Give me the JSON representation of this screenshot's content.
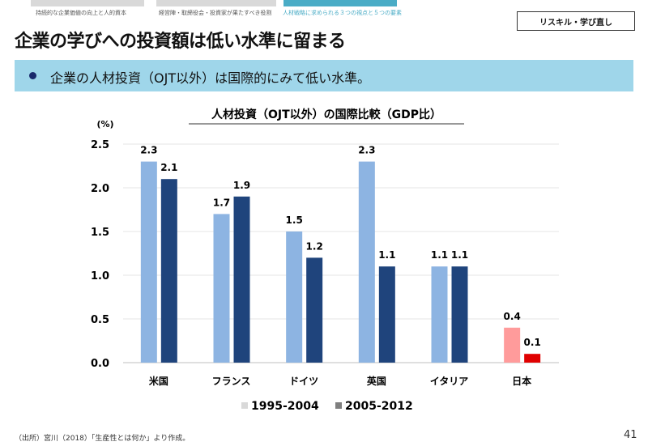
{
  "header": {
    "tabs": [
      {
        "label": "持続的な企業価値の向上と人的資本",
        "color": "#d9d9d9",
        "active": false
      },
      {
        "label": "経営陣・取締役会・投資家が果たすべき役割",
        "color": "#d9d9d9",
        "active": false
      },
      {
        "label": "人材戦略に求められる３つの視点と５つの要素",
        "color": "#4aacc6",
        "active": true
      }
    ],
    "tag": "リスキル・学び直し",
    "title": "企業の学びへの投資額は低い水準に留まる"
  },
  "band": {
    "text": "企業の人材投資（OJT以外）は国際的にみて低い水準。"
  },
  "footnote": "（出所）宮川（2018）「生産性とは何か」より作成。",
  "page_number": "41",
  "chart_data": {
    "type": "bar",
    "title": "人材投資（OJT以外）の国際比較（GDP比）",
    "ylabel": "(%)",
    "xlabel": "",
    "ylim": [
      0,
      2.5
    ],
    "yticks": [
      "0.0",
      "0.5",
      "1.0",
      "1.5",
      "2.0",
      "2.5"
    ],
    "grid": true,
    "legend": "bottom",
    "categories": [
      "米国",
      "フランス",
      "ドイツ",
      "英国",
      "イタリア",
      "日本"
    ],
    "series": [
      {
        "name": "1995-2004",
        "values": [
          2.3,
          1.7,
          1.5,
          2.3,
          1.1,
          0.4
        ],
        "color": "#8db4e2",
        "highlight_color": "#ff9b9b",
        "legend_color": "#d9d9d9"
      },
      {
        "name": "2005-2012",
        "values": [
          2.1,
          1.9,
          1.2,
          1.1,
          1.1,
          0.1
        ],
        "color": "#1f447c",
        "highlight_color": "#e00000",
        "legend_color": "#7f7f7f"
      }
    ],
    "highlight_category": "日本"
  }
}
